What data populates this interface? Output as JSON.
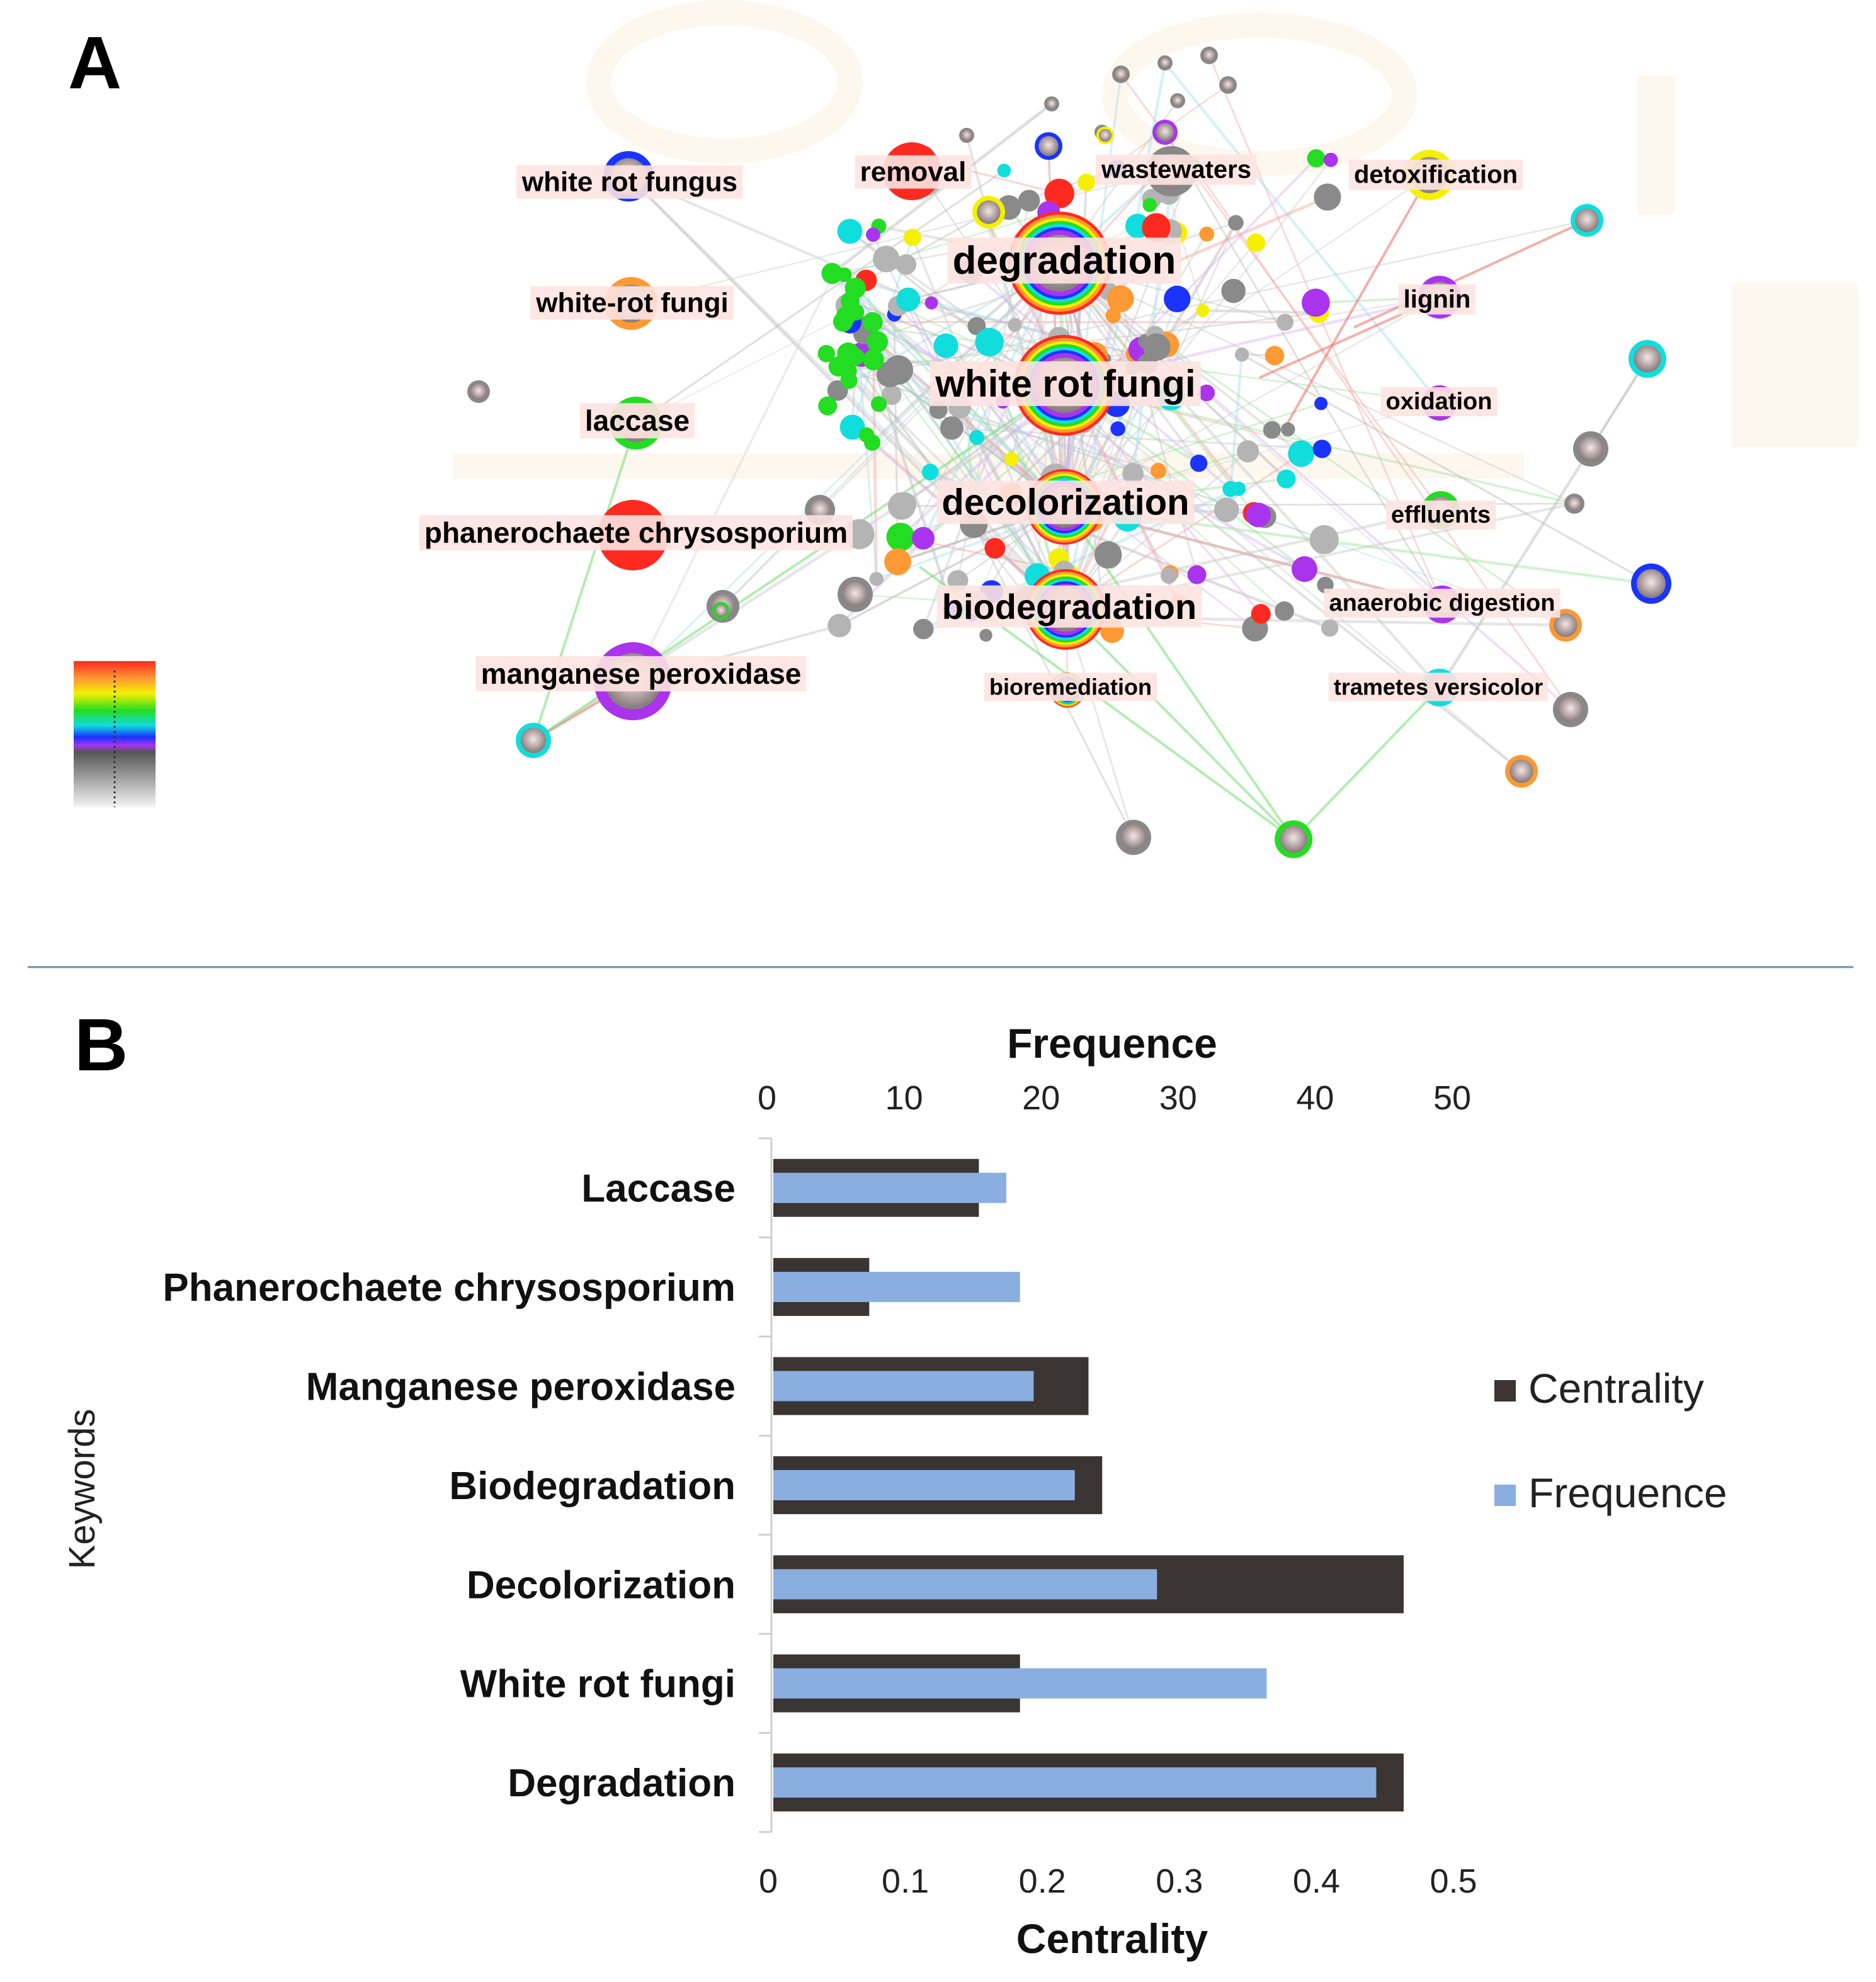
{
  "panels": {
    "a_label": "A",
    "b_label": "B"
  },
  "network": {
    "keywords": [
      {
        "label": "white rot fungus",
        "size": "small"
      },
      {
        "label": "removal",
        "size": "small"
      },
      {
        "label": "wastewaters",
        "size": "small"
      },
      {
        "label": "detoxification",
        "size": "small"
      },
      {
        "label": "degradation",
        "size": "large"
      },
      {
        "label": "white-rot fungi",
        "size": "small"
      },
      {
        "label": "lignin",
        "size": "small"
      },
      {
        "label": "white rot fungi",
        "size": "large"
      },
      {
        "label": "oxidation",
        "size": "small"
      },
      {
        "label": "laccase",
        "size": "medium"
      },
      {
        "label": "decolorization",
        "size": "large"
      },
      {
        "label": "effluents",
        "size": "small"
      },
      {
        "label": "phanerochaete chrysosporium",
        "size": "medium"
      },
      {
        "label": "anaerobic digestion",
        "size": "small"
      },
      {
        "label": "biodegradation",
        "size": "large"
      },
      {
        "label": "manganese peroxidase",
        "size": "medium"
      },
      {
        "label": "bioremediation",
        "size": "small"
      },
      {
        "label": "trametes versicolor",
        "size": "small"
      }
    ],
    "colors": {
      "red": "#ff2a1f",
      "orange": "#ff9933",
      "yellow": "#f5f000",
      "green": "#22dd22",
      "cyan": "#11dddd",
      "blue": "#1a33ff",
      "purple": "#aa33ee",
      "grey": "#888888"
    }
  },
  "chart_data": {
    "type": "bar",
    "orientation": "horizontal",
    "categories": [
      "Laccase",
      "Phanerochaete chrysosporium",
      "Manganese peroxidase",
      "Biodegradation",
      "Decolorization",
      "White rot fungi",
      "Degradation"
    ],
    "series": [
      {
        "name": "Centrality",
        "axis": "bottom",
        "color": "#3a3432",
        "values": [
          0.15,
          0.07,
          0.23,
          0.24,
          0.46,
          0.18,
          0.46
        ]
      },
      {
        "name": "Frequence",
        "axis": "top",
        "color": "#8aaee0",
        "values": [
          17,
          18,
          19,
          22,
          28,
          36,
          44
        ]
      }
    ],
    "top_axis": {
      "label": "Frequence",
      "range": [
        0,
        50
      ],
      "ticks": [
        "0",
        "10",
        "20",
        "30",
        "40",
        "50"
      ]
    },
    "bottom_axis": {
      "label": "Centrality",
      "range": [
        0,
        0.5
      ],
      "ticks": [
        "0",
        "0.1",
        "0.2",
        "0.3",
        "0.4",
        "0.5"
      ]
    },
    "ylabel": "Keywords",
    "legend": {
      "position": "right",
      "entries": [
        "Centrality",
        "Frequence"
      ]
    }
  }
}
